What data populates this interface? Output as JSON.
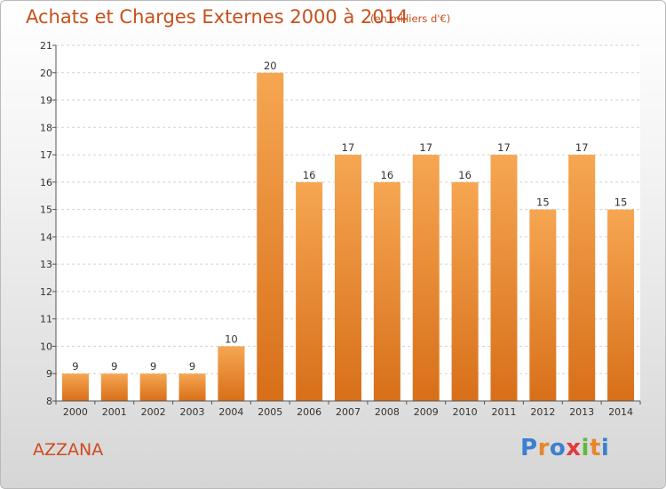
{
  "header": {
    "title": "Achats et Charges Externes 2000 à 2014",
    "subtitle": "(en milliers d'€)"
  },
  "commune": "AZZANA",
  "brand": {
    "letters": [
      "P",
      "r",
      "o",
      "x",
      "i",
      "t",
      "i"
    ],
    "colors": [
      "#3b7fd0",
      "#e8862a",
      "#3b7fd0",
      "#e23a3a",
      "#62b840",
      "#e8862a",
      "#3b7fd0"
    ]
  },
  "chart_data": {
    "type": "bar",
    "categories": [
      "2000",
      "2001",
      "2002",
      "2003",
      "2004",
      "2005",
      "2006",
      "2007",
      "2008",
      "2009",
      "2010",
      "2011",
      "2012",
      "2013",
      "2014"
    ],
    "values": [
      9,
      9,
      9,
      9,
      10,
      20,
      16,
      17,
      16,
      17,
      16,
      17,
      15,
      17,
      15
    ],
    "ylim": [
      8,
      21
    ],
    "yticks": [
      8,
      9,
      10,
      11,
      12,
      13,
      14,
      15,
      16,
      17,
      18,
      19,
      20,
      21
    ],
    "grid": true,
    "bar_color_top": "#f6a652",
    "bar_color_bottom": "#d86f19"
  }
}
